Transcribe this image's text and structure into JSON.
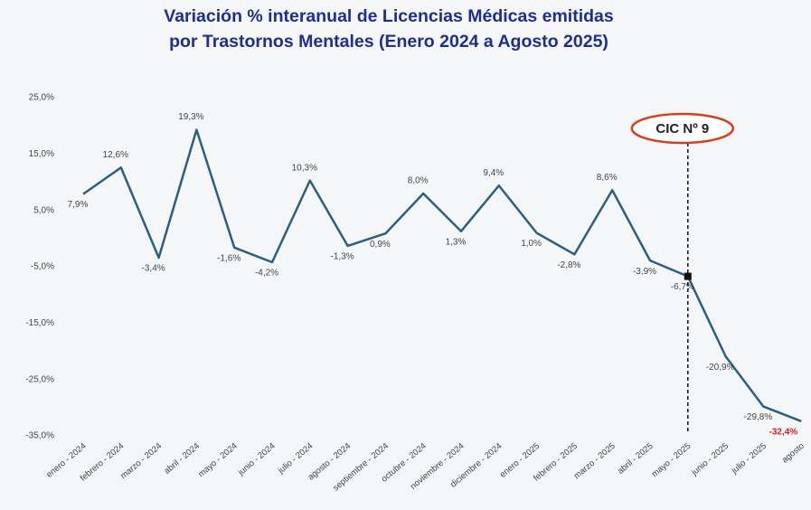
{
  "chart_data": {
    "type": "line",
    "title": [
      "Variación % interanual de Licencias Médicas emitidas",
      "por Trastornos Mentales  (Enero 2024 a Agosto 2025)"
    ],
    "categories": [
      "enero - 2024",
      "febrero - 2024",
      "marzo - 2024",
      "abril - 2024",
      "mayo - 2024",
      "junio - 2024",
      "julio - 2024",
      "agosto - 2024",
      "septiembre - 2024",
      "octubre - 2024",
      "noviembre - 2024",
      "diciembre - 2024",
      "enero - 2025",
      "febrero - 2025",
      "marzo - 2025",
      "abril - 2025",
      "mayo - 2025",
      "junio - 2025",
      "julio - 2025",
      "agosto"
    ],
    "values": [
      7.9,
      12.6,
      -3.4,
      19.3,
      -1.6,
      -4.2,
      10.3,
      -1.3,
      0.9,
      8.0,
      1.3,
      9.4,
      1.0,
      -2.8,
      8.6,
      -3.9,
      -6.7,
      -20.9,
      -29.8,
      -32.4
    ],
    "value_labels": [
      "7,9%",
      "12,6%",
      "-3,4%",
      "19,3%",
      "-1,6%",
      "-4,2%",
      "10,3%",
      "-1,3%",
      "0,9%",
      "8,0%",
      "1,3%",
      "9,4%",
      "1,0%",
      "-2,8%",
      "8,6%",
      "-3,9%",
      "-6,7%",
      "-20,9%",
      "-29,8%",
      "-32,4%"
    ],
    "color": "#2b5f80",
    "ylim": [
      -35,
      25
    ],
    "yticks": [
      {
        "value": 25,
        "label": "25,0%"
      },
      {
        "value": 15,
        "label": "15,0%"
      },
      {
        "value": 5,
        "label": "5,0%"
      },
      {
        "value": -5,
        "label": "-5,0%"
      },
      {
        "value": -15,
        "label": "-15,0%"
      },
      {
        "value": -25,
        "label": "-25,0%"
      },
      {
        "value": -35,
        "label": "-35,0%"
      }
    ],
    "annotation": {
      "text": "CIC Nº 9",
      "category": "mayo - 2025"
    }
  }
}
